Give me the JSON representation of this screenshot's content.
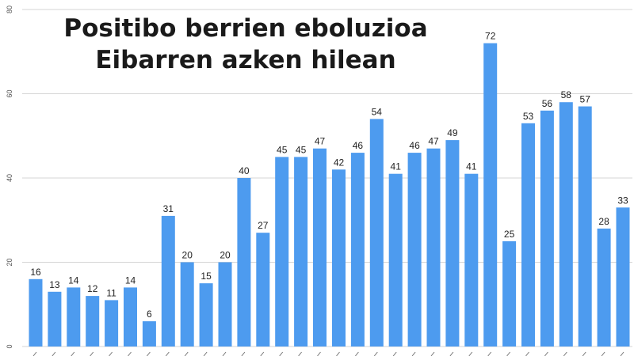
{
  "chart_data": {
    "type": "bar",
    "title_lines": [
      "Positibo berrien eboluzioa",
      "Eibarren azken hilean"
    ],
    "values": [
      16,
      13,
      14,
      12,
      11,
      14,
      6,
      31,
      20,
      15,
      20,
      40,
      27,
      45,
      45,
      47,
      42,
      46,
      54,
      41,
      46,
      47,
      49,
      41,
      72,
      25,
      53,
      56,
      58,
      57,
      28,
      33
    ],
    "yticks": [
      0,
      20,
      40,
      60,
      80
    ],
    "ylim": [
      0,
      80
    ],
    "grid": true,
    "legend": "none",
    "bar_color": "#4d9bef"
  }
}
